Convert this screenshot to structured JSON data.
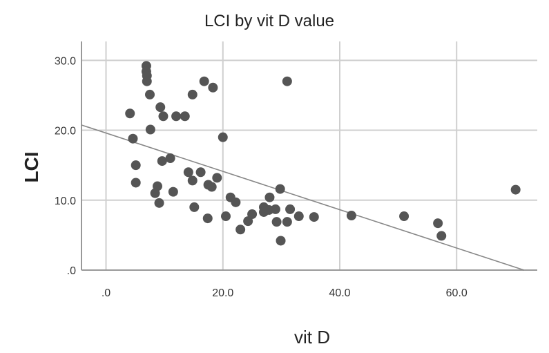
{
  "chart_data": {
    "type": "scatter",
    "title": "LCI by vit D value",
    "xlabel": "vit D",
    "ylabel": "LCI",
    "xlim": [
      -4.2,
      73.8
    ],
    "ylim": [
      0,
      32.7
    ],
    "xticks": [
      0,
      20,
      40,
      60
    ],
    "xtick_labels": [
      ".0",
      "20.0",
      "40.0",
      "60.0"
    ],
    "yticks": [
      0,
      10,
      20,
      30
    ],
    "ytick_labels": [
      ".0",
      "10.0",
      "20.0",
      "30.0"
    ],
    "grid": true,
    "point_color": "#555555",
    "line_color": "#888888",
    "fit_line": {
      "intercept": 19.6,
      "slope": -0.274
    },
    "points": [
      [
        6.9,
        29.2
      ],
      [
        6.9,
        28.4
      ],
      [
        7.0,
        27.8
      ],
      [
        7.0,
        27.0
      ],
      [
        7.5,
        25.1
      ],
      [
        16.8,
        27.0
      ],
      [
        18.3,
        26.1
      ],
      [
        31.0,
        27.0
      ],
      [
        14.8,
        25.1
      ],
      [
        4.1,
        22.4
      ],
      [
        9.3,
        23.3
      ],
      [
        9.8,
        22.0
      ],
      [
        12.0,
        22.0
      ],
      [
        13.5,
        22.0
      ],
      [
        7.6,
        20.1
      ],
      [
        4.6,
        18.8
      ],
      [
        20.0,
        19.0
      ],
      [
        9.6,
        15.6
      ],
      [
        11.0,
        16.0
      ],
      [
        5.1,
        15.0
      ],
      [
        5.1,
        12.5
      ],
      [
        14.1,
        14.0
      ],
      [
        16.2,
        14.0
      ],
      [
        14.8,
        12.8
      ],
      [
        17.5,
        12.2
      ],
      [
        18.1,
        11.9
      ],
      [
        19.0,
        13.2
      ],
      [
        8.8,
        12.0
      ],
      [
        8.4,
        11.0
      ],
      [
        9.1,
        9.6
      ],
      [
        11.5,
        11.2
      ],
      [
        15.1,
        9.0
      ],
      [
        17.4,
        7.4
      ],
      [
        20.5,
        7.7
      ],
      [
        21.3,
        10.4
      ],
      [
        22.2,
        9.7
      ],
      [
        23.0,
        5.8
      ],
      [
        24.3,
        7.0
      ],
      [
        25.0,
        8.0
      ],
      [
        27.0,
        9.0
      ],
      [
        27.0,
        8.3
      ],
      [
        28.0,
        10.4
      ],
      [
        27.9,
        8.6
      ],
      [
        29.0,
        8.7
      ],
      [
        29.2,
        6.9
      ],
      [
        29.8,
        11.6
      ],
      [
        31.0,
        6.9
      ],
      [
        31.5,
        8.7
      ],
      [
        29.9,
        4.2
      ],
      [
        33.0,
        7.7
      ],
      [
        35.6,
        7.6
      ],
      [
        42.0,
        7.8
      ],
      [
        51.0,
        7.7
      ],
      [
        56.8,
        6.7
      ],
      [
        57.4,
        4.9
      ],
      [
        70.1,
        11.5
      ]
    ]
  }
}
